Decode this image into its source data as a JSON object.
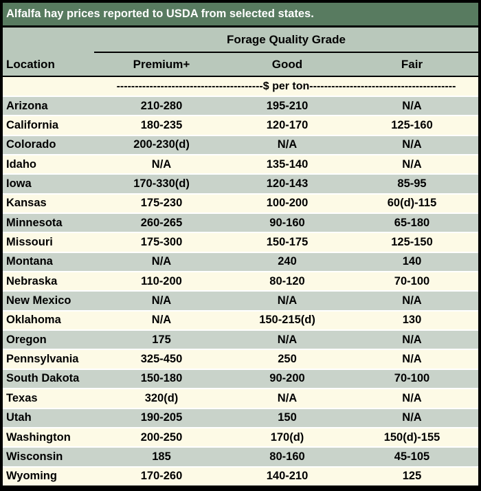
{
  "title": "Alfalfa hay prices reported to USDA from selected states.",
  "chart_data": {
    "type": "table",
    "title": "Alfalfa hay prices reported to USDA from selected states.",
    "group_header": "Forage Quality Grade",
    "unit_label": "$ per ton",
    "unit_row_text": "----------------------------------------$ per ton----------------------------------------",
    "columns": [
      "Location",
      "Premium+",
      "Good",
      "Fair"
    ],
    "rows": [
      {
        "location": "Arizona",
        "premium": "210-280",
        "good": "195-210",
        "fair": "N/A"
      },
      {
        "location": "California",
        "premium": "180-235",
        "good": "120-170",
        "fair": "125-160"
      },
      {
        "location": "Colorado",
        "premium": "200-230(d)",
        "good": "N/A",
        "fair": "N/A"
      },
      {
        "location": "Idaho",
        "premium": "N/A",
        "good": "135-140",
        "fair": "N/A"
      },
      {
        "location": "Iowa",
        "premium": "170-330(d)",
        "good": "120-143",
        "fair": "85-95"
      },
      {
        "location": "Kansas",
        "premium": "175-230",
        "good": "100-200",
        "fair": "60(d)-115"
      },
      {
        "location": "Minnesota",
        "premium": "260-265",
        "good": "90-160",
        "fair": "65-180"
      },
      {
        "location": "Missouri",
        "premium": "175-300",
        "good": "150-175",
        "fair": "125-150"
      },
      {
        "location": "Montana",
        "premium": "N/A",
        "good": "240",
        "fair": "140"
      },
      {
        "location": "Nebraska",
        "premium": "110-200",
        "good": "80-120",
        "fair": "70-100"
      },
      {
        "location": "New Mexico",
        "premium": "N/A",
        "good": "N/A",
        "fair": "N/A"
      },
      {
        "location": "Oklahoma",
        "premium": "N/A",
        "good": "150-215(d)",
        "fair": "130"
      },
      {
        "location": "Oregon",
        "premium": "175",
        "good": "N/A",
        "fair": "N/A"
      },
      {
        "location": "Pennsylvania",
        "premium": "325-450",
        "good": "250",
        "fair": "N/A"
      },
      {
        "location": "South Dakota",
        "premium": "150-180",
        "good": "90-200",
        "fair": "70-100"
      },
      {
        "location": "Texas",
        "premium": "320(d)",
        "good": "N/A",
        "fair": "N/A"
      },
      {
        "location": "Utah",
        "premium": "190-205",
        "good": "150",
        "fair": "N/A"
      },
      {
        "location": "Washington",
        "premium": "200-250",
        "good": "170(d)",
        "fair": "150(d)-155"
      },
      {
        "location": "Wisconsin",
        "premium": "185",
        "good": "80-160",
        "fair": "45-105"
      },
      {
        "location": "Wyoming",
        "premium": "170-260",
        "good": "140-210",
        "fair": "125"
      }
    ]
  },
  "colors": {
    "border": "#000000",
    "title_bg": "#587b60",
    "title_text": "#ffffff",
    "header_bg": "#b9c8bb",
    "row_sage": "#c9d3ca",
    "row_cream": "#fdfae6",
    "row_separator": "#ffffff"
  }
}
